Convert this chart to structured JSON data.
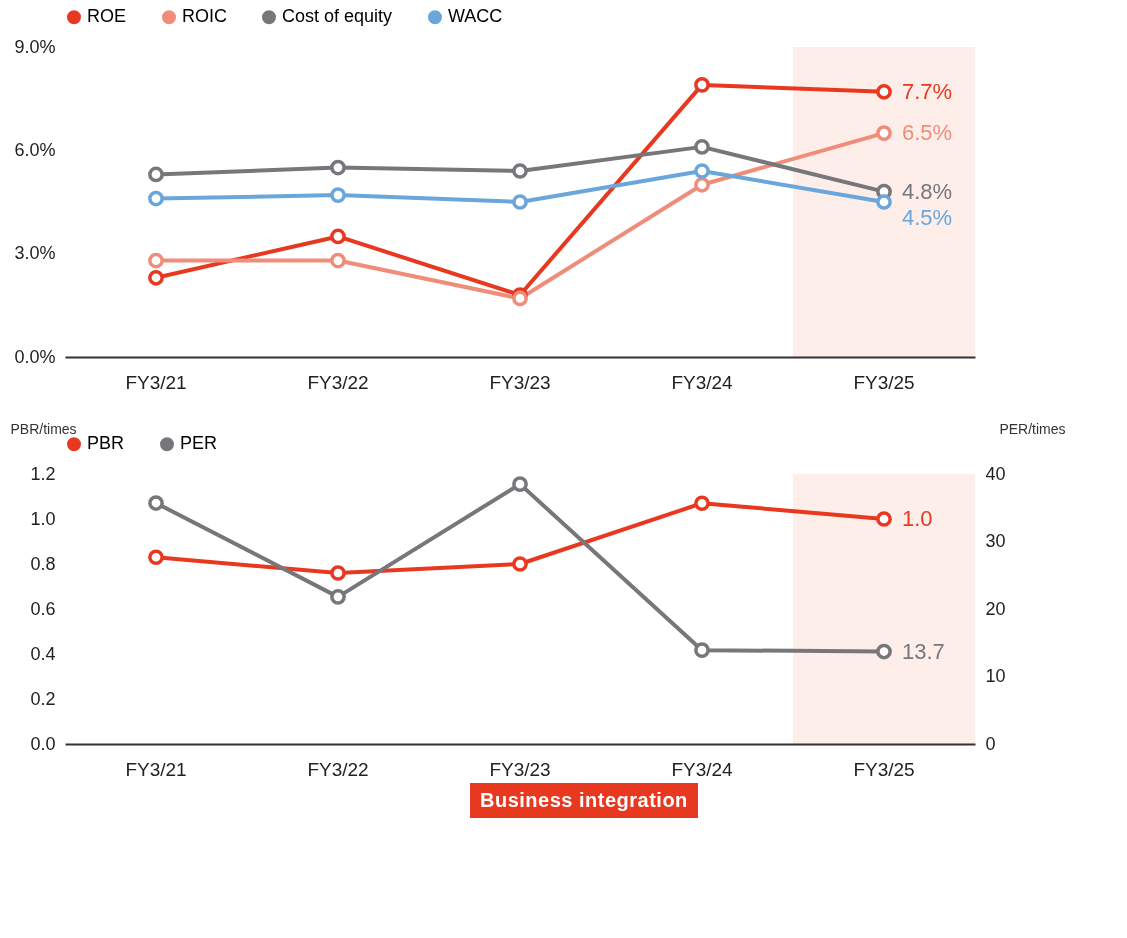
{
  "chart_data": [
    {
      "type": "line",
      "categories": [
        "FY3/21",
        "FY3/22",
        "FY3/23",
        "FY3/24",
        "FY3/25"
      ],
      "ylim": [
        0,
        9
      ],
      "yticks": [
        {
          "value": 0,
          "label": "0.0%"
        },
        {
          "value": 3,
          "label": "3.0%"
        },
        {
          "value": 6,
          "label": "6.0%"
        },
        {
          "value": 9,
          "label": "9.0%"
        }
      ],
      "series": [
        {
          "name": "ROE",
          "color": "#e8381f",
          "values": [
            2.3,
            3.5,
            1.8,
            7.9,
            7.7
          ],
          "value_labels": [
            null,
            null,
            null,
            null,
            "7.7%"
          ]
        },
        {
          "name": "ROIC",
          "color": "#f08c7a",
          "values": [
            2.8,
            2.8,
            1.7,
            5.0,
            6.5
          ],
          "value_labels": [
            null,
            null,
            null,
            null,
            "6.5%"
          ]
        },
        {
          "name": "Cost of equity",
          "color": "#77767b",
          "values": [
            5.3,
            5.5,
            5.4,
            6.1,
            4.8
          ],
          "value_labels": [
            null,
            null,
            null,
            null,
            "4.8%"
          ]
        },
        {
          "name": "WACC",
          "color": "#6aa6dc",
          "values": [
            4.6,
            4.7,
            4.5,
            5.4,
            4.5
          ],
          "value_labels": [
            null,
            null,
            null,
            null,
            "4.5%"
          ]
        }
      ],
      "bands": [
        {
          "axis": "x",
          "from": "FY3/25",
          "to": "FY3/25",
          "color": "#fdeeea"
        }
      ],
      "legend": "top",
      "marker": "circle",
      "line_style": "solid",
      "grid": false
    },
    {
      "type": "line",
      "categories": [
        "FY3/21",
        "FY3/22",
        "FY3/23",
        "FY3/24",
        "FY3/25"
      ],
      "ylabel": "PBR/times",
      "y2label": "PER/times",
      "ylim": [
        0,
        1.2
      ],
      "yticks": [
        {
          "value": 0,
          "label": "0.0"
        },
        {
          "value": 0.2,
          "label": "0.2"
        },
        {
          "value": 0.4,
          "label": "0.4"
        },
        {
          "value": 0.6,
          "label": "0.6"
        },
        {
          "value": 0.8,
          "label": "0.8"
        },
        {
          "value": 1.0,
          "label": "1.0"
        },
        {
          "value": 1.2,
          "label": "1.2"
        }
      ],
      "y2lim": [
        0,
        40
      ],
      "y2ticks": [
        0,
        10,
        20,
        30,
        40
      ],
      "series": [
        {
          "name": "PBR",
          "color": "#e8381f",
          "values": [
            0.83,
            0.76,
            0.8,
            1.07,
            1.0
          ],
          "value_labels": [
            null,
            null,
            null,
            null,
            "1.0"
          ]
        },
        {
          "name": "PER",
          "color": "#77767b",
          "axis": "y2",
          "values": [
            35.7,
            21.8,
            38.5,
            13.9,
            13.7
          ],
          "value_labels": [
            null,
            null,
            null,
            null,
            "13.7"
          ]
        }
      ],
      "bands": [
        {
          "axis": "x",
          "from": "FY3/25",
          "to": "FY3/25",
          "color": "#fdeeea"
        }
      ],
      "annotations": [
        "Business integration"
      ],
      "legend": "top",
      "marker": "circle",
      "line_style": "solid",
      "grid": false
    }
  ]
}
